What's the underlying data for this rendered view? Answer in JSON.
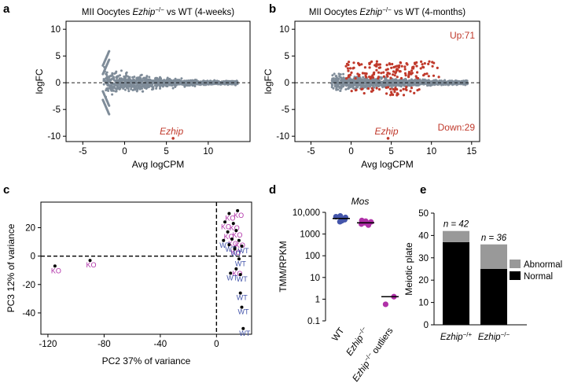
{
  "figure": {
    "panel_labels": [
      "a",
      "b",
      "c",
      "d",
      "e"
    ]
  },
  "colors": {
    "gray_points": "#7f8c99",
    "red_points": "#c0392b",
    "red_text": "#c0392b",
    "ko": "#b030a8",
    "wt": "#4455aa",
    "black": "#000000",
    "abnormal": "#999999"
  },
  "chart_data": [
    {
      "id": "a",
      "type": "scatter",
      "title_prefix": "MII Oocytes ",
      "title_gene": "Ezhip",
      "title_sup": "−/−",
      "title_suffix": " vs WT (4-weeks)",
      "xlabel": "Avg logCPM",
      "ylabel": "logFC",
      "xlim": [
        -7,
        15
      ],
      "ylim": [
        -11,
        11.5
      ],
      "xticks": [
        -5,
        0,
        5,
        10
      ],
      "yticks": [
        -10,
        -5,
        0,
        5,
        10
      ],
      "hline": 0,
      "cloud": {
        "x_start": -2.5,
        "x_end": 13.5,
        "spread_left": 3.2,
        "spread_right": 0.5
      },
      "highlight": {
        "label": "Ezhip",
        "x": 5.8,
        "y": -10.4
      }
    },
    {
      "id": "b",
      "type": "scatter",
      "title_prefix": "MII Oocytes ",
      "title_gene": "Ezhip",
      "title_sup": "−/−",
      "title_suffix": " vs WT (4-months)",
      "xlabel": "Avg logCPM",
      "ylabel": "logFC",
      "xlim": [
        -7,
        16
      ],
      "ylim": [
        -11,
        11.5
      ],
      "xticks": [
        -5,
        0,
        5,
        10,
        15
      ],
      "yticks": [
        -10,
        -5,
        0,
        5,
        10
      ],
      "hline": 0,
      "cloud": {
        "x_start": -2.5,
        "x_end": 14.5,
        "spread_left": 2.2,
        "spread_right": 0.6
      },
      "up_label": "Up:71",
      "down_label": "Down:29",
      "up_count": 71,
      "down_count": 29,
      "highlight": {
        "label": "Ezhip",
        "x": 4.6,
        "y": -10.4
      }
    },
    {
      "id": "c",
      "type": "scatter",
      "xlabel": "PC2 37% of variance",
      "ylabel": "PC3 12% of variance",
      "xlim": [
        -125,
        25
      ],
      "ylim": [
        -55,
        38
      ],
      "xticks": [
        -120,
        -80,
        -40,
        0
      ],
      "yticks": [
        -40,
        -20,
        0,
        20
      ],
      "dashed_lines": {
        "x": 0,
        "y": 0
      },
      "points": [
        {
          "label": "KO",
          "x": -115,
          "y": -7
        },
        {
          "label": "KO",
          "x": -90,
          "y": -3
        },
        {
          "label": "KO",
          "x": 9,
          "y": 30
        },
        {
          "label": "KO",
          "x": 15,
          "y": 32
        },
        {
          "label": "KO",
          "x": 12,
          "y": 23
        },
        {
          "label": "KO",
          "x": 6,
          "y": 24
        },
        {
          "label": "KO",
          "x": 8,
          "y": 17
        },
        {
          "label": "KO",
          "x": 14,
          "y": 18
        },
        {
          "label": "KO",
          "x": 11,
          "y": 12
        },
        {
          "label": "KO",
          "x": 16,
          "y": 11
        },
        {
          "label": "KO",
          "x": 13,
          "y": 6
        },
        {
          "label": "KO",
          "x": 14,
          "y": -9
        },
        {
          "label": "WT",
          "x": 5,
          "y": 11
        },
        {
          "label": "WT",
          "x": 9,
          "y": 8
        },
        {
          "label": "WT",
          "x": 13,
          "y": 5
        },
        {
          "label": "WT",
          "x": 16,
          "y": -2
        },
        {
          "label": "WT",
          "x": 18,
          "y": 7
        },
        {
          "label": "WT",
          "x": 10,
          "y": -12
        },
        {
          "label": "WT",
          "x": 17,
          "y": -13
        },
        {
          "label": "WT",
          "x": 17,
          "y": -26
        },
        {
          "label": "WT",
          "x": 18,
          "y": -36
        },
        {
          "label": "WT",
          "x": 19,
          "y": -51
        }
      ]
    },
    {
      "id": "d",
      "type": "scatter",
      "title": "Mos",
      "ylabel": "TMM/RPKM",
      "yscale": "log",
      "ylim": [
        0.1,
        10000
      ],
      "ytick_values": [
        0.1,
        1,
        10,
        100,
        1000,
        10000
      ],
      "ytick_labels": [
        "0.1",
        "1",
        "10",
        "100",
        "1000",
        "10,000"
      ],
      "groups": [
        {
          "name": "WT",
          "gene": "",
          "sup": "",
          "suffix": "WT",
          "median": 5200,
          "values": [
            6800,
            5800,
            5200,
            4600,
            4100,
            3700,
            6300
          ]
        },
        {
          "name": "Ezhip−/−",
          "gene": "Ezhip",
          "sup": "−/−",
          "suffix": "",
          "median": 3300,
          "values": [
            4200,
            3600,
            3300,
            2900,
            2600,
            3900
          ]
        },
        {
          "name": "Ezhip−/− outliers",
          "gene": "Ezhip",
          "sup": "−/−",
          "suffix": " outliers",
          "median": 1.3,
          "values": [
            1.3,
            0.58
          ]
        }
      ]
    },
    {
      "id": "e",
      "type": "bar",
      "stacked": true,
      "ylabel": "Meiotic plate",
      "ylim": [
        0,
        50
      ],
      "yticks": [
        0,
        10,
        20,
        30,
        40,
        50
      ],
      "categories": [
        {
          "gene": "Ezhip",
          "sup": "−/+"
        },
        {
          "gene": "Ezhip",
          "sup": "−/−"
        }
      ],
      "category_names": [
        "Ezhip−/+",
        "Ezhip−/−"
      ],
      "n_labels": [
        "n = 42",
        "n = 36"
      ],
      "n_values": [
        42,
        36
      ],
      "series": [
        {
          "name": "Normal",
          "values": [
            37,
            25
          ]
        },
        {
          "name": "Abnormal",
          "values": [
            5,
            11
          ]
        }
      ],
      "legend": [
        "Abnormal",
        "Normal"
      ]
    }
  ]
}
